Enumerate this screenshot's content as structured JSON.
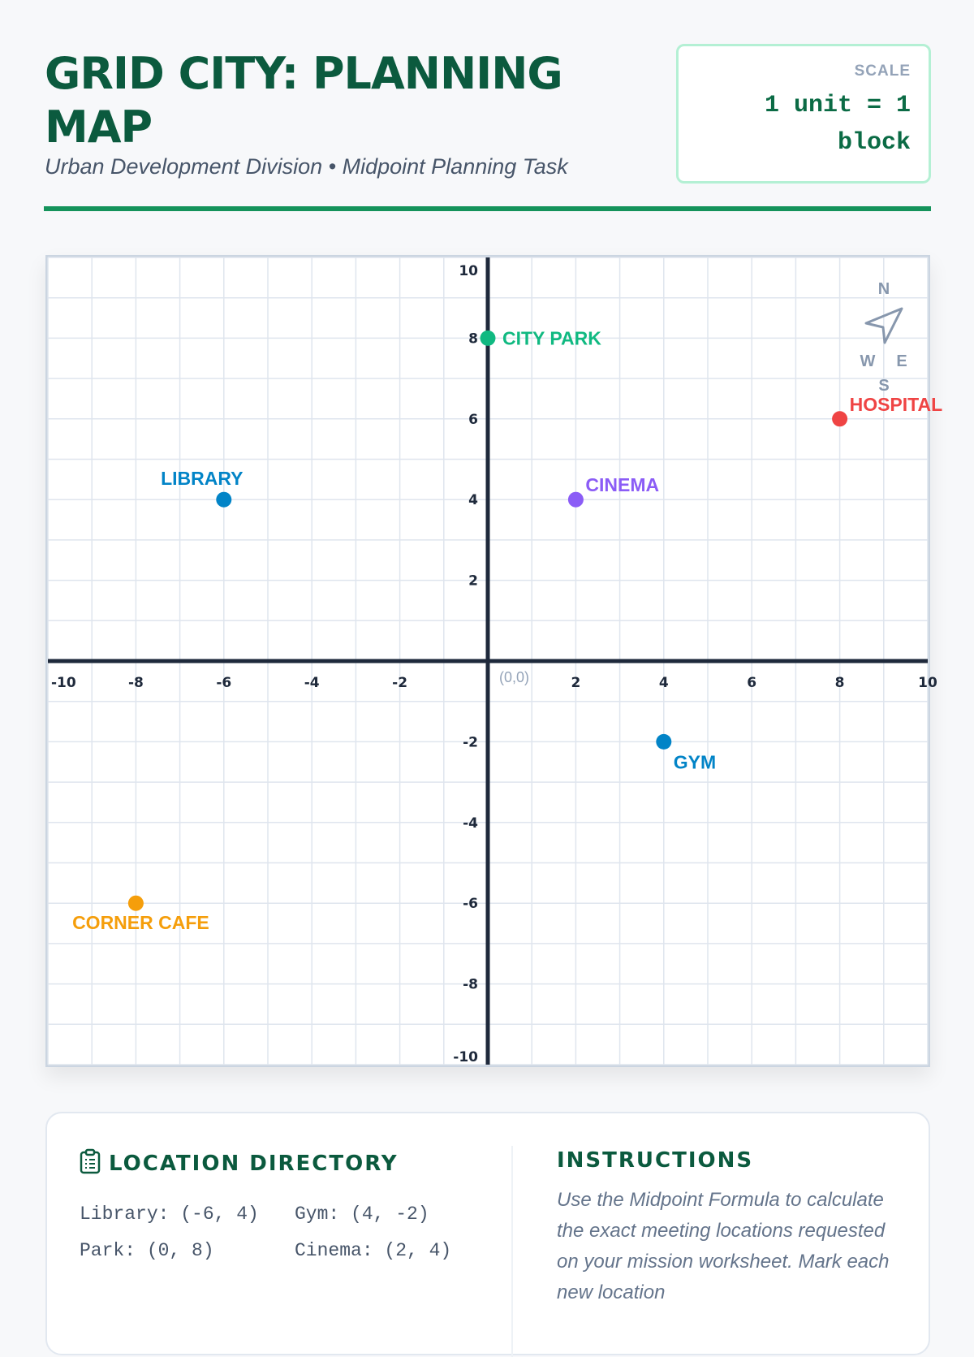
{
  "header": {
    "title": "GRID CITY: PLANNING MAP",
    "subtitle": "Urban Development Division • Midpoint Planning Task"
  },
  "scale": {
    "label": "SCALE",
    "value": "1 unit = 1 block"
  },
  "map": {
    "x_range": [
      -10,
      10
    ],
    "y_range": [
      -10,
      10
    ],
    "x_ticks": [
      -10,
      -8,
      -6,
      -4,
      -2,
      2,
      4,
      6,
      8,
      10
    ],
    "y_ticks": [
      10,
      8,
      6,
      4,
      2,
      -2,
      -4,
      -6,
      -8,
      -10
    ],
    "origin_label": "(0,0)",
    "compass": {
      "n": "N",
      "e": "E",
      "s": "S",
      "w": "W"
    },
    "locations": [
      {
        "name": "CITY PARK",
        "x": 0,
        "y": 8,
        "color": "#10b981",
        "pos": "right"
      },
      {
        "name": "HOSPITAL",
        "x": 8,
        "y": 6,
        "color": "#ef4444",
        "pos": "upright"
      },
      {
        "name": "LIBRARY",
        "x": -6,
        "y": 4,
        "color": "#0284c7",
        "pos": "above"
      },
      {
        "name": "CINEMA",
        "x": 2,
        "y": 4,
        "color": "#8b5cf6",
        "pos": "upright"
      },
      {
        "name": "GYM",
        "x": 4,
        "y": -2,
        "color": "#0284c7",
        "pos": "downright"
      },
      {
        "name": "CORNER CAFE",
        "x": -8,
        "y": -6,
        "color": "#f59e0b",
        "pos": "below"
      }
    ]
  },
  "directory": {
    "title": "LOCATION DIRECTORY",
    "entries": [
      "Library: (-6, 4)",
      "Gym: (4, -2)",
      "Park: (0, 8)",
      "Cinema: (2, 4)"
    ]
  },
  "instructions": {
    "title": "INSTRUCTIONS",
    "text": "Use the Midpoint Formula to calculate the exact meeting locations requested on your mission worksheet. Mark each new location"
  }
}
